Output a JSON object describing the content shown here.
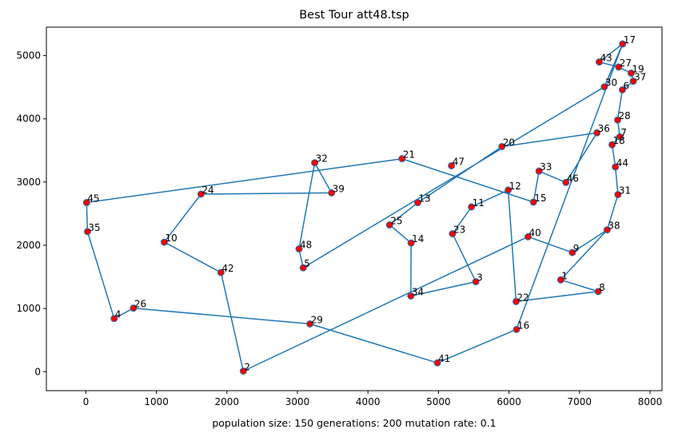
{
  "chart_data": {
    "type": "line",
    "title": "Best Tour att48.tsp",
    "xlabel": "population size: 150 generations: 200 mutation rate: 0.1",
    "ylabel": "",
    "xlim": [
      -560,
      8170
    ],
    "ylim": [
      -300,
      5450
    ],
    "xticks": [
      0,
      1000,
      2000,
      3000,
      4000,
      5000,
      6000,
      7000,
      8000
    ],
    "yticks": [
      0,
      1000,
      2000,
      3000,
      4000,
      5000
    ],
    "grid": false,
    "colors": {
      "line": "#1f77b4",
      "marker_fill": "#ff0000",
      "marker_edge": "#1f77b4"
    },
    "cities": {
      "1": [
        6734,
        1453
      ],
      "2": [
        2233,
        10
      ],
      "3": [
        5530,
        1424
      ],
      "4": [
        401,
        841
      ],
      "5": [
        3082,
        1644
      ],
      "6": [
        7608,
        4458
      ],
      "7": [
        7573,
        3716
      ],
      "8": [
        7265,
        1268
      ],
      "9": [
        6898,
        1885
      ],
      "10": [
        1112,
        2049
      ],
      "11": [
        5468,
        2606
      ],
      "12": [
        5989,
        2873
      ],
      "13": [
        4706,
        2674
      ],
      "14": [
        4612,
        2035
      ],
      "15": [
        6347,
        2683
      ],
      "16": [
        6107,
        669
      ],
      "17": [
        7611,
        5184
      ],
      "18": [
        7462,
        3590
      ],
      "19": [
        7732,
        4723
      ],
      "20": [
        5900,
        3561
      ],
      "21": [
        4483,
        3369
      ],
      "22": [
        6101,
        1110
      ],
      "23": [
        5199,
        2182
      ],
      "24": [
        1633,
        2809
      ],
      "25": [
        4307,
        2322
      ],
      "26": [
        675,
        1006
      ],
      "27": [
        7555,
        4819
      ],
      "28": [
        7541,
        3981
      ],
      "29": [
        3177,
        756
      ],
      "30": [
        7352,
        4506
      ],
      "31": [
        7545,
        2801
      ],
      "32": [
        3245,
        3305
      ],
      "33": [
        6426,
        3173
      ],
      "34": [
        4608,
        1198
      ],
      "35": [
        23,
        2216
      ],
      "36": [
        7248,
        3779
      ],
      "37": [
        7762,
        4595
      ],
      "38": [
        7392,
        2244
      ],
      "39": [
        3484,
        2829
      ],
      "40": [
        6271,
        2135
      ],
      "41": [
        4985,
        140
      ],
      "42": [
        1916,
        1569
      ],
      "43": [
        7280,
        4899
      ],
      "44": [
        7509,
        3239
      ],
      "45": [
        10,
        2676
      ],
      "46": [
        6807,
        2993
      ],
      "47": [
        5185,
        3258
      ],
      "48": [
        3023,
        1942
      ]
    },
    "tour": [
      17,
      43,
      27,
      19,
      37,
      6,
      28,
      7,
      18,
      44,
      31,
      38,
      9,
      40,
      2,
      42,
      10,
      24,
      39,
      32,
      48,
      5,
      30,
      17,
      16,
      41,
      29,
      26,
      4,
      35,
      45,
      21,
      15,
      33,
      46,
      36,
      20,
      13,
      25,
      14,
      34,
      3,
      23,
      11,
      12,
      22,
      8,
      1,
      38
    ]
  }
}
